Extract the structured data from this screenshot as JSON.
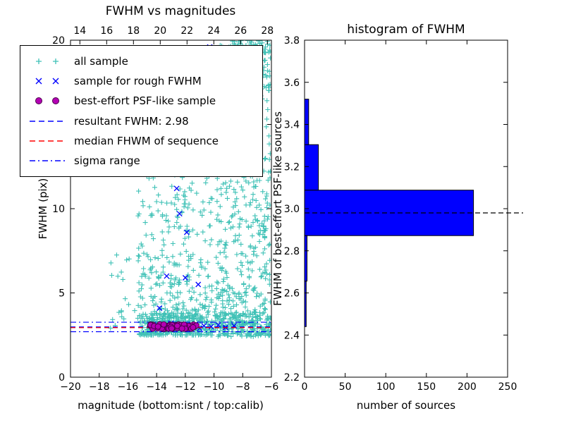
{
  "chart_data": [
    {
      "type": "scatter",
      "title": "FWHM vs magnitudes",
      "xlabel": "magnitude (bottom:isnt / top:calib)",
      "ylabel": "FWHM (pix)",
      "xlim": [
        -20,
        -6
      ],
      "ylim": [
        0,
        20
      ],
      "top_xlim": [
        13.3,
        28.3
      ],
      "x_ticks": [
        -20,
        -18,
        -16,
        -14,
        -12,
        -10,
        -8,
        -6
      ],
      "y_ticks": [
        0,
        5,
        10,
        15,
        20
      ],
      "top_axis_ticks": [
        14,
        16,
        18,
        20,
        22,
        24,
        26,
        28
      ],
      "legend_position": "upper left",
      "grid": false,
      "resultant_fwhm": 2.98,
      "series": [
        {
          "name": "all sample",
          "marker": "+",
          "color": "#3fc1b6",
          "approx_count": 1500,
          "clusters": [
            {
              "count": 420,
              "x": [
                -15.3,
                -10.1
              ],
              "y": [
                2.5,
                13.2
              ],
              "ypow": 2.4
            },
            {
              "count": 210,
              "x": [
                -15.2,
                -11.0
              ],
              "y": [
                2.6,
                3.8
              ],
              "ypow": 1
            },
            {
              "count": 520,
              "x": [
                -9.9,
                -6.05
              ],
              "y": [
                2.4,
                20.0
              ],
              "ypow": 1.6
            },
            {
              "count": 160,
              "x": [
                -9.4,
                -6.1
              ],
              "y": [
                16.5,
                20.0
              ],
              "ypow": 0.7
            },
            {
              "count": 140,
              "x": [
                -11.2,
                -6.05
              ],
              "y": [
                2.55,
                3.9
              ],
              "ypow": 1
            },
            {
              "count": 22,
              "x": [
                -17.3,
                -15.2
              ],
              "y": [
                2.6,
                7.5
              ],
              "ypow": 1.5
            },
            {
              "count": 30,
              "x": [
                -12.5,
                -9.8
              ],
              "y": [
                13.0,
                20.0
              ],
              "ypow": 1
            }
          ]
        },
        {
          "name": "sample for rough FWHM",
          "marker": "x",
          "color": "#0000ff",
          "points": [
            [
              -12.6,
              11.2
            ],
            [
              -12.4,
              9.7
            ],
            [
              -11.9,
              8.6
            ],
            [
              -13.3,
              6.0
            ],
            [
              -12.0,
              5.9
            ],
            [
              -11.1,
              5.5
            ],
            [
              -13.8,
              4.1
            ],
            [
              -10.3,
              19.6
            ],
            [
              -10.0,
              19.2
            ],
            [
              -14.2,
              3.05
            ],
            [
              -13.9,
              2.95
            ],
            [
              -13.6,
              3.1
            ],
            [
              -13.3,
              3.0
            ],
            [
              -13.0,
              3.2
            ],
            [
              -12.8,
              2.9
            ],
            [
              -12.5,
              3.05
            ],
            [
              -12.2,
              3.1
            ],
            [
              -11.9,
              2.95
            ],
            [
              -11.6,
              3.0
            ],
            [
              -11.3,
              3.15
            ],
            [
              -11.0,
              2.9
            ],
            [
              -10.7,
              3.05
            ],
            [
              -10.2,
              3.0
            ],
            [
              -9.7,
              3.1
            ],
            [
              -9.2,
              2.95
            ],
            [
              -8.6,
              3.05
            ]
          ]
        },
        {
          "name": "best-effort PSF-like sample",
          "marker": "o",
          "color": "#b400b4",
          "edge_color": "#4b004b",
          "clusters": [
            {
              "count": 60,
              "x": [
                -14.5,
                -11.2
              ],
              "y": [
                2.86,
                3.14
              ],
              "ypow": 1
            }
          ]
        }
      ],
      "lines": [
        {
          "name": "resultant FWHM: 2.98",
          "y": 2.98,
          "style": "dashed",
          "color": "#0000ff"
        },
        {
          "name": "median FHWM of sequence",
          "y": 2.94,
          "style": "dashed",
          "color": "#ff0000"
        },
        {
          "name": "sigma range",
          "y": [
            2.7,
            3.26
          ],
          "style": "dashdot",
          "color": "#0000ff"
        }
      ]
    },
    {
      "type": "bar",
      "orientation": "horizontal",
      "title": "histogram of FWHM",
      "xlabel": "number of sources",
      "ylabel": "FWHM of best-effort PSF-like sources",
      "xlim": [
        0,
        250
      ],
      "ylim": [
        2.2,
        3.8
      ],
      "x_ticks": [
        0,
        50,
        100,
        150,
        200,
        250
      ],
      "y_ticks": [
        2.2,
        2.4,
        2.6,
        2.8,
        3.0,
        3.2,
        3.4,
        3.6,
        3.8
      ],
      "bin_edges": [
        2.44,
        2.656,
        2.872,
        3.088,
        3.304,
        3.52
      ],
      "counts": [
        2,
        3,
        208,
        17,
        5
      ],
      "bar_color": "#0000ff",
      "bar_edge_color": "#000000",
      "dashed_line_y": 2.98,
      "grid": false
    }
  ]
}
